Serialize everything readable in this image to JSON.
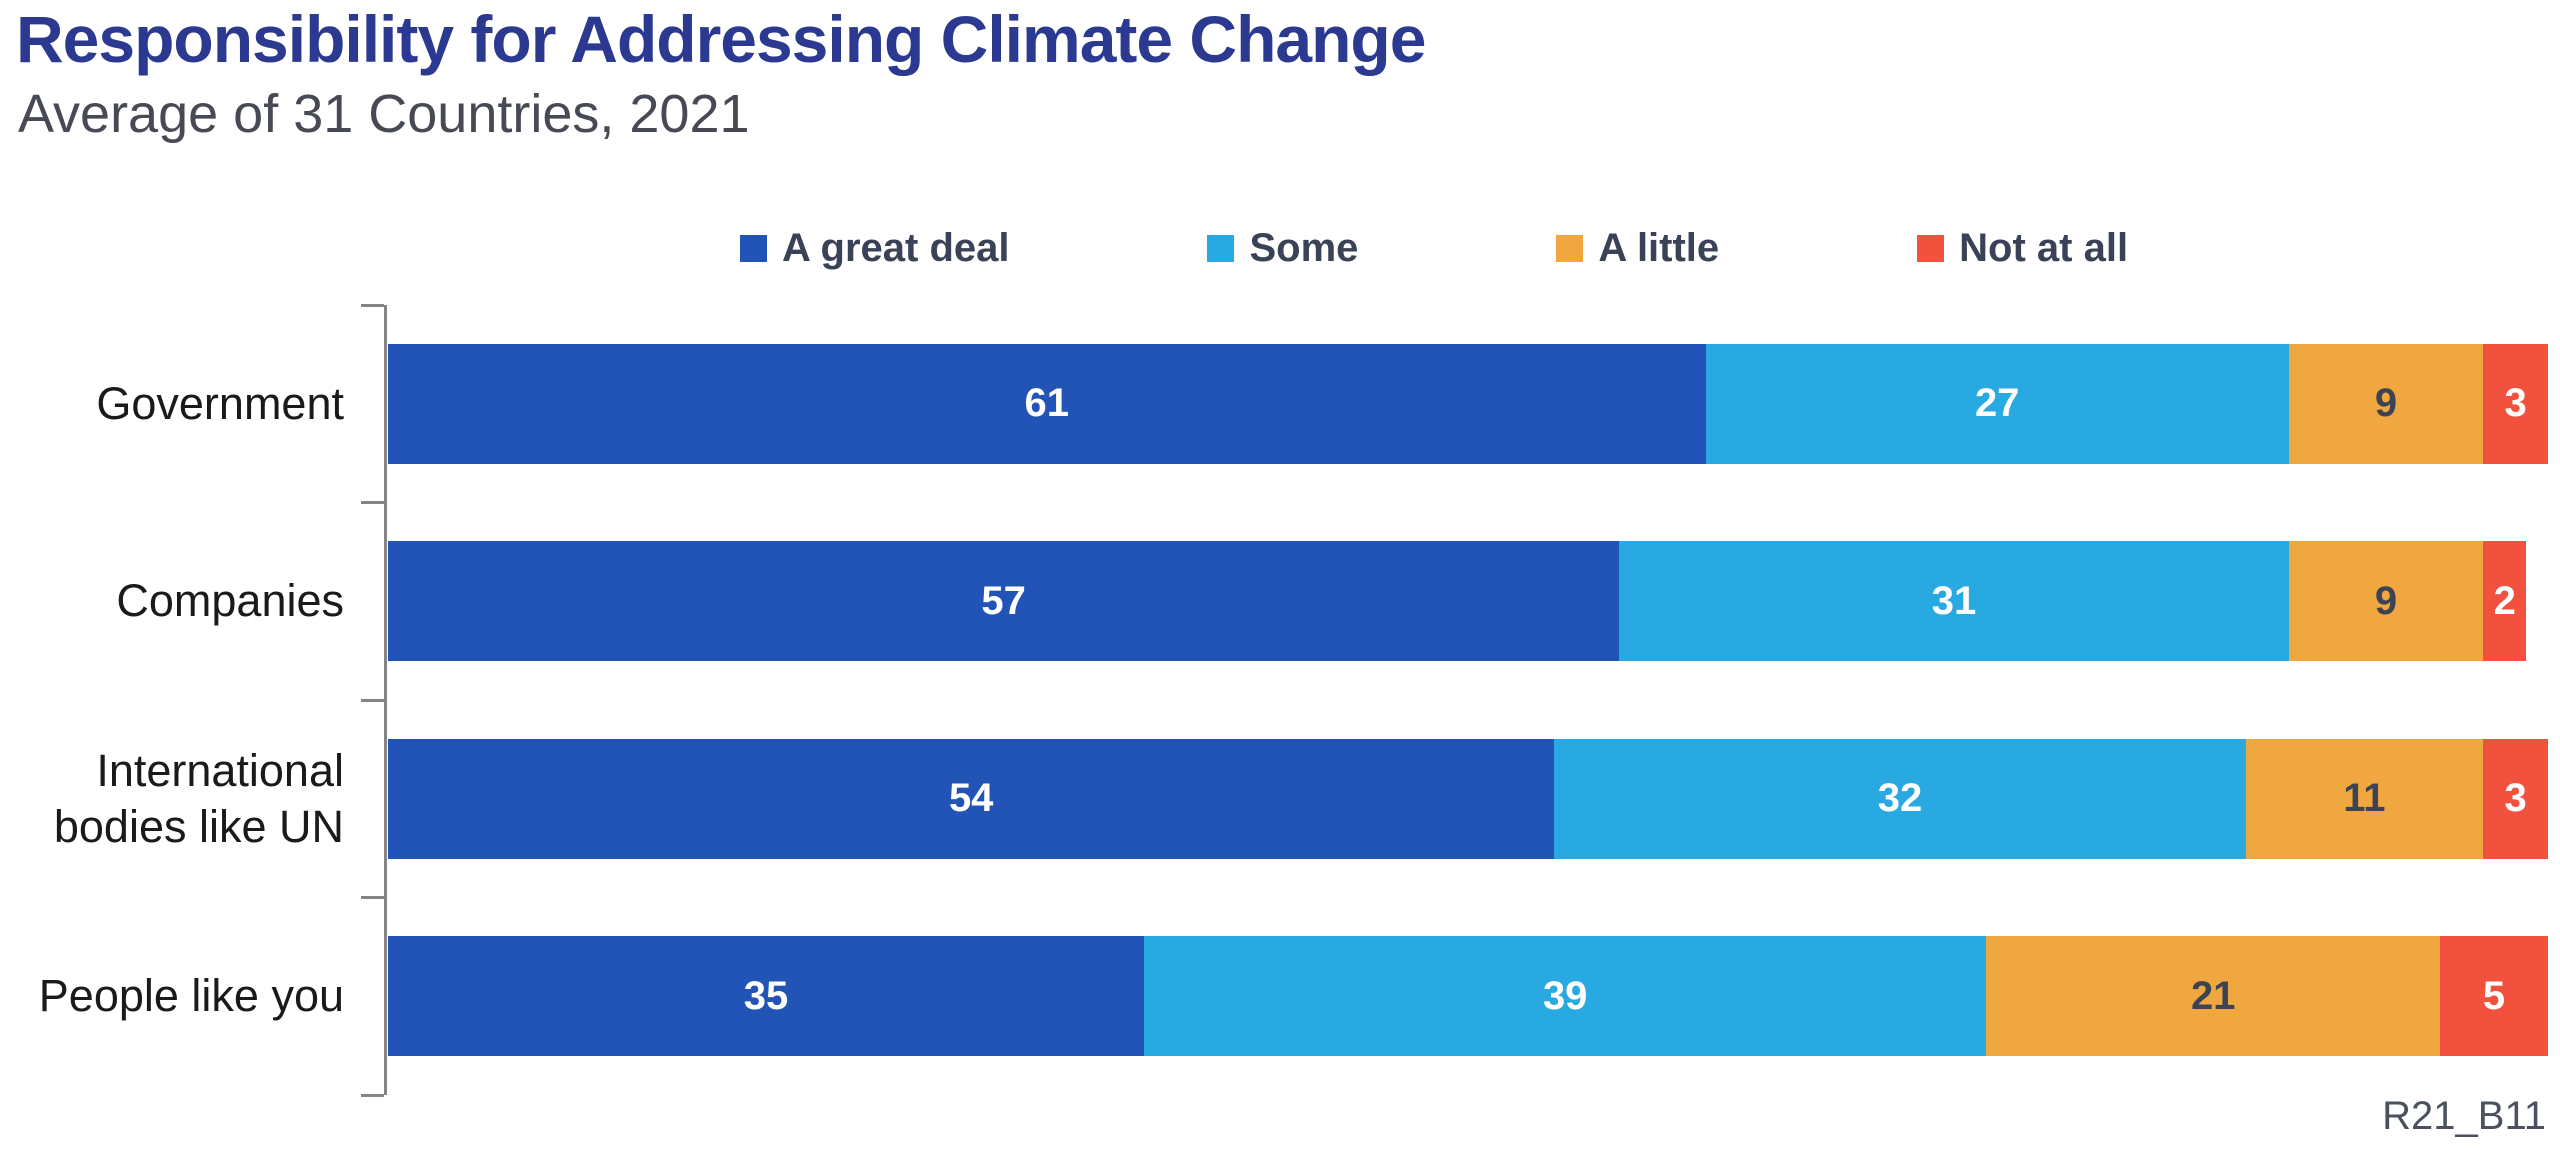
{
  "header": {
    "title": "Responsibility for Addressing Climate Change",
    "subtitle": "Average of 31 Countries, 2021"
  },
  "footnote": "R21_B11",
  "colors": {
    "title": "#2B3991",
    "subtitle": "#474A54",
    "axis": "#858585",
    "legend_text": "#3A4257",
    "category_label": "#1A1A1A",
    "footnote_text": "#4B515E",
    "background": "#FFFFFF"
  },
  "chart_data": {
    "type": "bar",
    "variant": "horizontal-stacked",
    "title": "Responsibility for Addressing Climate Change",
    "subtitle": "Average of 31 Countries, 2021",
    "xlim": [
      0,
      100
    ],
    "grid": false,
    "legend_position": "top",
    "value_labels": true,
    "categories": [
      "Government",
      "Companies",
      "International bodies like UN",
      "People like you"
    ],
    "series": [
      {
        "name": "A great deal",
        "color": "#2154B6",
        "label_color": "#FFFFFF",
        "values": [
          61,
          57,
          54,
          35
        ]
      },
      {
        "name": "Some",
        "color": "#29A9E1",
        "label_color": "#FFFFFF",
        "values": [
          27,
          31,
          32,
          39
        ]
      },
      {
        "name": "A little",
        "color": "#F0A73F",
        "label_color": "#3C4454",
        "values": [
          9,
          9,
          11,
          21
        ]
      },
      {
        "name": "Not at all",
        "color": "#F2513D",
        "label_color": "#FFFFFF",
        "values": [
          3,
          2,
          3,
          5
        ]
      }
    ]
  }
}
